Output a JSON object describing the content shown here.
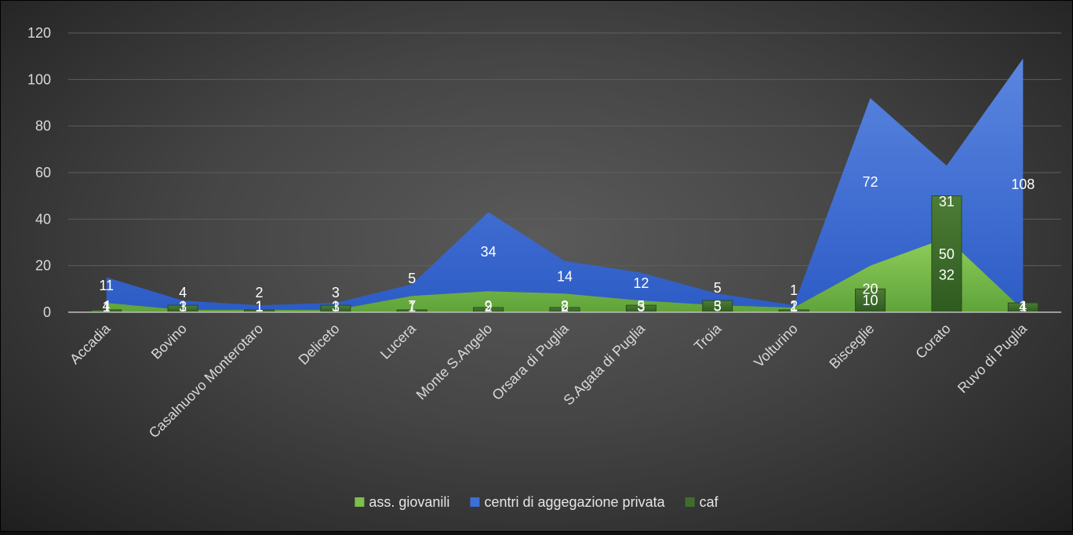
{
  "chart_data": {
    "type": "area",
    "categories": [
      "Accadia",
      "Bovino",
      "Casalnuovo Monterotaro",
      "Deliceto",
      "Lucera",
      "Monte S.Angelo",
      "Orsara di Puglia",
      "S.Agata di Puglia",
      "Troia",
      "Volturino",
      "Bisceglie",
      "Corato",
      "Ruvo di Puglia"
    ],
    "ylim": [
      0,
      120
    ],
    "yticks": [
      0,
      20,
      40,
      60,
      80,
      100,
      120
    ],
    "grid": true,
    "legend_position": "bottom",
    "stacking": "stacked area (ass. giovanili + centri di aggegazione privata), caf as overlaid columns",
    "series": [
      {
        "name": "ass. giovanili",
        "kind": "area",
        "color": "#7cc04a",
        "values": [
          4,
          1,
          1,
          1,
          7,
          9,
          8,
          5,
          3,
          2,
          20,
          32,
          1
        ]
      },
      {
        "name": "centri di aggegazione privata",
        "kind": "area",
        "color": "#3d6fd8",
        "values": [
          11,
          4,
          2,
          3,
          5,
          34,
          14,
          12,
          5,
          1,
          72,
          31,
          108
        ]
      },
      {
        "name": "caf",
        "kind": "column",
        "color": "#3f6e2c",
        "values": [
          1,
          3,
          1,
          3,
          1,
          2,
          2,
          3,
          5,
          1,
          10,
          50,
          4
        ]
      }
    ]
  }
}
